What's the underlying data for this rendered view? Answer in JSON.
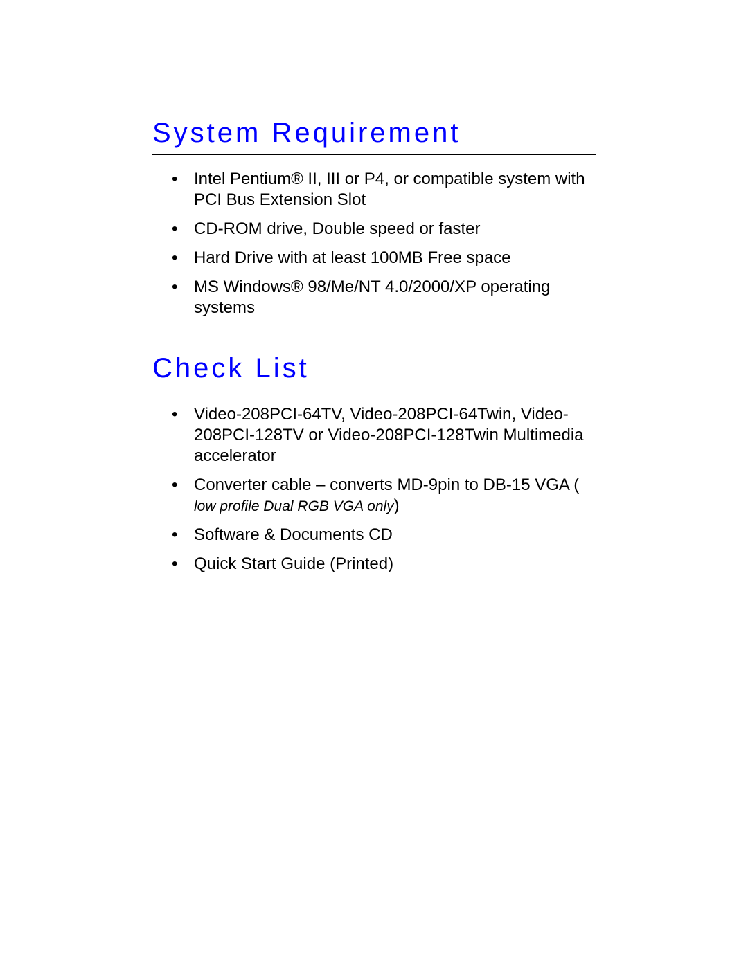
{
  "sections": {
    "system_requirement": {
      "heading": "System Requirement",
      "items": [
        "Intel Pentium® II, III or P4, or compatible system with PCI Bus Extension Slot",
        "CD-ROM drive, Double speed or faster",
        "Hard Drive with at least 100MB Free space",
        "MS Windows® 98/Me/NT 4.0/2000/XP operating systems"
      ]
    },
    "check_list": {
      "heading": "Check List",
      "items": {
        "item0": "Video-208PCI-64TV, Video-208PCI-64Twin, Video-208PCI-128TV or Video-208PCI-128Twin Multimedia accelerator",
        "item1_main": "Converter cable – converts MD-9pin to DB-15 VGA ( ",
        "item1_note": "low profile Dual RGB VGA only",
        "item1_close": ")",
        "item2": "Software & Documents CD",
        "item3": "Quick Start Guide (Printed)"
      }
    }
  },
  "styling": {
    "heading_color": "#0000ff",
    "heading_fontsize": 40,
    "heading_letterspacing": 4,
    "body_fontsize": 24,
    "italic_fontsize": 21,
    "text_color": "#000000",
    "background_color": "#ffffff",
    "divider_color": "#000000"
  }
}
